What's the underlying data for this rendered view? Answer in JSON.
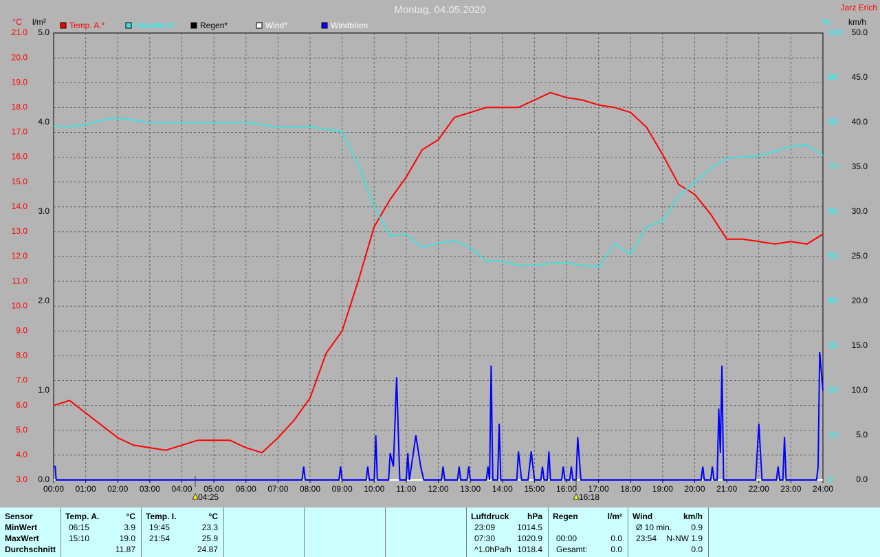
{
  "chart_data": {
    "type": "line",
    "title": "Montag, 04.05.2020",
    "author": "Jarz Erich",
    "xlim": [
      0,
      24
    ],
    "xticks": [
      {
        "value": 0,
        "label": "00:00"
      },
      {
        "value": 1,
        "label": "01:00"
      },
      {
        "value": 2,
        "label": "02:00"
      },
      {
        "value": 3,
        "label": "03:00"
      },
      {
        "value": 4,
        "label": "04:00"
      },
      {
        "value": 5,
        "label": "05:00"
      },
      {
        "value": 6,
        "label": "06:00"
      },
      {
        "value": 7,
        "label": "07:00"
      },
      {
        "value": 8,
        "label": "08:00"
      },
      {
        "value": 9,
        "label": "09:00"
      },
      {
        "value": 10,
        "label": "10:00"
      },
      {
        "value": 11,
        "label": "11:00"
      },
      {
        "value": 12,
        "label": "12:00"
      },
      {
        "value": 13,
        "label": "13:00"
      },
      {
        "value": 14,
        "label": "14:00"
      },
      {
        "value": 15,
        "label": "15:00"
      },
      {
        "value": 16,
        "label": "16:00"
      },
      {
        "value": 17,
        "label": "17:00"
      },
      {
        "value": 18,
        "label": "18:00"
      },
      {
        "value": 19,
        "label": "19:00"
      },
      {
        "value": 20,
        "label": "20:00"
      },
      {
        "value": 21,
        "label": "21:00"
      },
      {
        "value": 22,
        "label": "22:00"
      },
      {
        "value": 23,
        "label": "23:00"
      },
      {
        "value": 24,
        "label": "24:00"
      }
    ],
    "grid": true,
    "y_axes": [
      {
        "unit": "°C",
        "color": "#ff0000",
        "lim": [
          3,
          21
        ],
        "ticks": [
          {
            "value": 3,
            "label": "3.0"
          },
          {
            "value": 4,
            "label": "4.0"
          },
          {
            "value": 5,
            "label": "5.0"
          },
          {
            "value": 6,
            "label": "6.0"
          },
          {
            "value": 7,
            "label": "7.0"
          },
          {
            "value": 8,
            "label": "8.0"
          },
          {
            "value": 9,
            "label": "9.0"
          },
          {
            "value": 10,
            "label": "10.0"
          },
          {
            "value": 11,
            "label": "11.0"
          },
          {
            "value": 12,
            "label": "12.0"
          },
          {
            "value": 13,
            "label": "13.0"
          },
          {
            "value": 14,
            "label": "14.0"
          },
          {
            "value": 15,
            "label": "15.0"
          },
          {
            "value": 16,
            "label": "16.0"
          },
          {
            "value": 17,
            "label": "17.0"
          },
          {
            "value": 18,
            "label": "18.0"
          },
          {
            "value": 19,
            "label": "19.0"
          },
          {
            "value": 20,
            "label": "20.0"
          },
          {
            "value": 21,
            "label": "21.0"
          }
        ]
      },
      {
        "unit": "l/m²",
        "color": "#000000",
        "lim": [
          0,
          5
        ],
        "ticks": [
          {
            "value": 0,
            "label": "0.0"
          },
          {
            "value": 1,
            "label": "1.0"
          },
          {
            "value": 2,
            "label": "2.0"
          },
          {
            "value": 3,
            "label": "3.0"
          },
          {
            "value": 4,
            "label": "4.0"
          },
          {
            "value": 5,
            "label": "5.0"
          }
        ]
      },
      {
        "unit": "%",
        "color": "#00ffff",
        "lim": [
          0,
          100
        ],
        "ticks": [
          0,
          10,
          20,
          30,
          40,
          50,
          60,
          70,
          80,
          90,
          100
        ]
      },
      {
        "unit": "km/h",
        "color": "#000000",
        "lim": [
          0,
          50
        ],
        "ticks": [
          {
            "value": 0,
            "label": "0.0"
          },
          {
            "value": 5,
            "label": "5.0"
          },
          {
            "value": 10,
            "label": "10.0"
          },
          {
            "value": 15,
            "label": "15.0"
          },
          {
            "value": 20,
            "label": "20.0"
          },
          {
            "value": 25,
            "label": "25.0"
          },
          {
            "value": 30,
            "label": "30.0"
          },
          {
            "value": 35,
            "label": "35.0"
          },
          {
            "value": 40,
            "label": "40.0"
          },
          {
            "value": 45,
            "label": "45.0"
          },
          {
            "value": 50,
            "label": "50.0"
          }
        ]
      }
    ],
    "series": [
      {
        "name": "Temp. A.*",
        "color": "#ff0000",
        "axis": 0,
        "x": [
          0,
          0.5,
          1,
          1.5,
          2,
          2.5,
          3,
          3.5,
          4,
          4.5,
          5,
          5.5,
          6,
          6.5,
          7,
          7.5,
          8,
          8.5,
          9,
          9.5,
          10,
          10.5,
          11,
          11.5,
          12,
          12.5,
          13,
          13.5,
          14,
          14.5,
          15,
          15.5,
          16,
          16.5,
          17,
          17.5,
          18,
          18.5,
          19,
          19.5,
          20,
          20.5,
          21,
          21.5,
          22,
          22.5,
          23,
          23.5,
          24
        ],
        "values": [
          6.0,
          6.2,
          5.7,
          5.2,
          4.7,
          4.4,
          4.3,
          4.2,
          4.4,
          4.6,
          4.6,
          4.6,
          4.3,
          4.1,
          4.7,
          5.4,
          6.3,
          8.1,
          9.0,
          11.0,
          13.2,
          14.3,
          15.2,
          16.3,
          16.7,
          17.6,
          17.8,
          18.0,
          18.0,
          18.0,
          18.3,
          18.6,
          18.4,
          18.3,
          18.1,
          18.0,
          17.8,
          17.2,
          16.1,
          14.9,
          14.5,
          13.7,
          12.7,
          12.7,
          12.6,
          12.5,
          12.6,
          12.5,
          12.9
        ]
      },
      {
        "name": "Feuchte A.*",
        "color": "#40e0e0",
        "axis": 2,
        "x": [
          0,
          0.5,
          1,
          1.5,
          2,
          2.5,
          3,
          3.5,
          4,
          4.5,
          5,
          5.5,
          6,
          6.5,
          7,
          7.5,
          8,
          8.5,
          9,
          9.5,
          10,
          10.5,
          11,
          11.5,
          12,
          12.5,
          13,
          13.5,
          14,
          14.5,
          15,
          15.5,
          16,
          16.5,
          17,
          17.5,
          18,
          18.5,
          19,
          19.5,
          20,
          20.5,
          21,
          21.5,
          22,
          22.5,
          23,
          23.5,
          24
        ],
        "values": [
          79.2,
          79,
          79.5,
          80.5,
          81,
          80.5,
          80,
          80,
          80,
          80,
          80,
          80,
          80,
          79.5,
          79,
          79,
          79,
          78.5,
          78,
          70.5,
          61,
          54.6,
          55,
          52,
          53,
          53.5,
          52,
          49,
          49,
          48,
          48,
          48.5,
          48.6,
          48,
          47.7,
          52.8,
          50.5,
          56.6,
          58,
          63.5,
          66.6,
          69.7,
          72,
          72.3,
          72.5,
          73.5,
          74.6,
          75,
          72.6
        ]
      },
      {
        "name": "Regen*",
        "color": "#000000",
        "axis": 1,
        "x": [
          0,
          24
        ],
        "values": [
          0,
          0
        ]
      },
      {
        "name": "Wind*",
        "color": "#ffffff",
        "axis": 3,
        "x": [
          0,
          24
        ],
        "values": [
          0,
          0
        ]
      },
      {
        "name": "Windböen",
        "color": "#0000ff",
        "axis": 3,
        "x": [
          0,
          0.05,
          0.08,
          7.75,
          7.8,
          7.85,
          8.9,
          8.95,
          9,
          9.75,
          9.8,
          9.85,
          10,
          10.05,
          10.1,
          10.45,
          10.5,
          10.6,
          10.7,
          10.8,
          11,
          11.05,
          11.1,
          11.3,
          11.45,
          11.55,
          12.1,
          12.15,
          12.2,
          12.6,
          12.65,
          12.7,
          12.9,
          12.95,
          13,
          13.5,
          13.55,
          13.6,
          13.65,
          13.7,
          13.85,
          13.9,
          13.95,
          14.45,
          14.5,
          14.6,
          14.8,
          14.9,
          15,
          15.2,
          15.25,
          15.3,
          15.4,
          15.45,
          15.5,
          15.85,
          15.9,
          15.95,
          16.1,
          16.15,
          16.2,
          16.3,
          16.35,
          16.45,
          20.2,
          20.25,
          20.3,
          20.5,
          20.55,
          20.6,
          20.7,
          20.75,
          20.8,
          20.85,
          20.9,
          21.9,
          22,
          22.1,
          22.55,
          22.6,
          22.65,
          22.75,
          22.8,
          22.85,
          23.8,
          23.85,
          23.9,
          24
        ],
        "values": [
          1.5,
          1.5,
          0,
          0,
          1.5,
          0,
          0,
          1.5,
          0,
          0,
          1.5,
          0,
          0,
          5.0,
          0,
          0,
          3.0,
          1.5,
          11.5,
          0,
          0,
          3.0,
          0,
          5.0,
          1.5,
          0,
          0,
          1.5,
          0,
          0,
          1.5,
          0,
          0,
          1.5,
          0,
          0,
          1.5,
          0,
          12.8,
          0,
          0,
          6.3,
          0,
          0,
          3.2,
          0,
          0,
          3.2,
          0,
          0,
          1.5,
          0,
          0,
          3.2,
          0,
          0,
          1.5,
          0,
          0,
          1.5,
          0,
          0,
          4.8,
          0,
          0,
          1.5,
          0,
          0,
          1.5,
          0,
          0,
          8.0,
          3.0,
          12.8,
          0,
          0,
          6.3,
          0,
          0,
          1.5,
          0,
          0,
          4.8,
          0,
          0,
          1.5,
          14.3,
          10
        ]
      }
    ],
    "annotations": [
      {
        "x": 4.42,
        "label": "04:25"
      },
      {
        "x": 16.3,
        "label": "16:18"
      }
    ]
  },
  "stats": {
    "columns": [
      {
        "rows": [
          [
            "Sensor"
          ],
          [
            "MinWert"
          ],
          [
            "MaxWert"
          ],
          [
            "Durchschnitt"
          ]
        ]
      },
      {
        "rows": [
          [
            "Temp. A.",
            "°C"
          ],
          [
            "06:15",
            "3.9"
          ],
          [
            "15:10",
            "19.0"
          ],
          [
            null,
            "11.87"
          ]
        ]
      },
      {
        "rows": [
          [
            "Temp. I.",
            "°C"
          ],
          [
            "19:45",
            "23.3"
          ],
          [
            "21:54",
            "25.9"
          ],
          [
            null,
            "24.87"
          ]
        ]
      },
      {
        "rows": [
          [
            "Luftdruck",
            "hPa"
          ],
          [
            "23:09",
            "1014.5"
          ],
          [
            "07:30",
            "1020.9"
          ],
          [
            "^1.0hPa/h",
            "1018.4"
          ]
        ]
      },
      {
        "rows": [
          [
            "Regen",
            "l/m²"
          ],
          [
            null,
            null
          ],
          [
            "00:00",
            "0.0"
          ],
          [
            "Gesamt:",
            "0.0"
          ]
        ]
      },
      {
        "rows": [
          [
            "Wind",
            "km/h"
          ],
          [
            "Ø 10 min.",
            "0.9"
          ],
          [
            "23:54",
            "N-NW 1.9"
          ],
          [
            null,
            "0.0"
          ]
        ]
      }
    ]
  }
}
